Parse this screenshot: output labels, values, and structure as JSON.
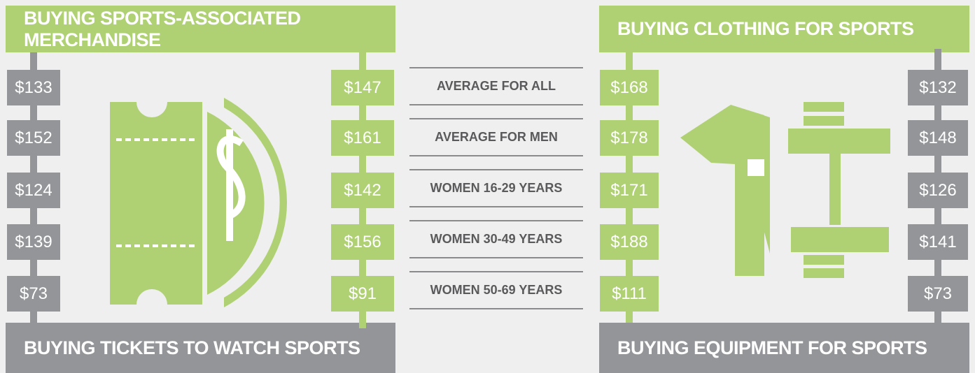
{
  "categories": [
    "AVERAGE FOR ALL",
    "AVERAGE FOR MEN",
    "WOMEN 16-29 YEARS",
    "WOMEN 30-49 YEARS",
    "WOMEN 50-69 YEARS"
  ],
  "panels": [
    {
      "title": "BUYING TICKETS TO WATCH SPORTS",
      "values": [
        "$133",
        "$152",
        "$124",
        "$139",
        "$73"
      ]
    },
    {
      "title": "BUYING SPORTS-ASSOCIATED MERCHANDISE",
      "values": [
        "$147",
        "$161",
        "$142",
        "$156",
        "$91"
      ]
    },
    {
      "title": "BUYING CLOTHING FOR SPORTS",
      "values": [
        "$168",
        "$178",
        "$171",
        "$188",
        "$111"
      ]
    },
    {
      "title": "BUYING EQUIPMENT FOR SPORTS",
      "values": [
        "$132",
        "$148",
        "$126",
        "$141",
        "$73"
      ]
    }
  ]
}
